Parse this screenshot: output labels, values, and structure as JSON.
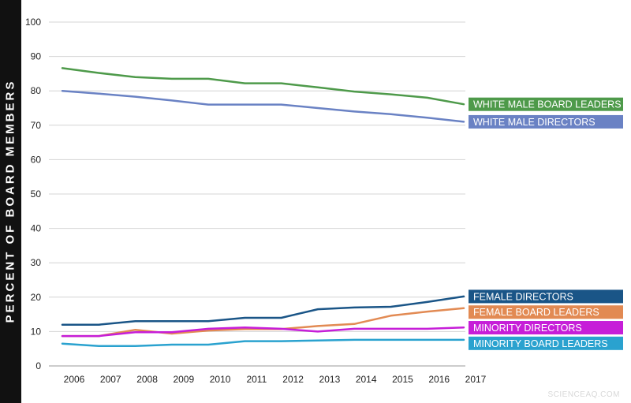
{
  "chart_data": {
    "type": "line",
    "ylabel": "PERCENT OF BOARD MEMBERS",
    "xlabel": "",
    "title": "",
    "x": [
      "2006",
      "2007",
      "2008",
      "2009",
      "2010",
      "2011",
      "2012",
      "2013",
      "2014",
      "2015",
      "2016",
      "2017"
    ],
    "yticks": [
      0,
      10,
      20,
      30,
      40,
      50,
      60,
      70,
      80,
      90,
      100
    ],
    "ylim": [
      0,
      100
    ],
    "grid": true,
    "legend": "labels at right end of lines",
    "series": [
      {
        "name": "WHITE MALE BOARD LEADERS",
        "color": "#4e9a4a",
        "values": [
          86.6,
          85.2,
          84.0,
          83.5,
          83.5,
          82.2,
          82.2,
          81.0,
          79.8,
          79.0,
          78.0,
          76.1
        ]
      },
      {
        "name": "WHITE MALE DIRECTORS",
        "color": "#6a82c4",
        "values": [
          80.0,
          79.2,
          78.3,
          77.2,
          76.0,
          76.0,
          76.0,
          75.0,
          74.0,
          73.2,
          72.2,
          71.0
        ]
      },
      {
        "name": "FEMALE DIRECTORS",
        "color": "#1a5587",
        "values": [
          12.0,
          12.0,
          13.0,
          13.0,
          13.0,
          14.0,
          14.0,
          16.5,
          17.0,
          17.2,
          18.6,
          20.2
        ]
      },
      {
        "name": "FEMALE BOARD LEADERS",
        "color": "#e28a53",
        "values": [
          8.7,
          8.7,
          10.5,
          9.4,
          10.3,
          10.7,
          10.7,
          11.6,
          12.2,
          14.6,
          15.8,
          16.8
        ]
      },
      {
        "name": "MINORITY DIRECTORS",
        "color": "#c61ed8",
        "values": [
          8.7,
          8.7,
          9.8,
          9.8,
          10.8,
          11.2,
          10.8,
          10.0,
          10.8,
          10.8,
          10.8,
          11.2
        ]
      },
      {
        "name": "MINORITY BOARD LEADERS",
        "color": "#2aa2cf",
        "values": [
          6.5,
          5.8,
          5.8,
          6.2,
          6.2,
          7.2,
          7.2,
          7.4,
          7.6,
          7.6,
          7.6,
          7.6
        ]
      }
    ]
  },
  "watermark": "SCIENCEAQ.COM"
}
